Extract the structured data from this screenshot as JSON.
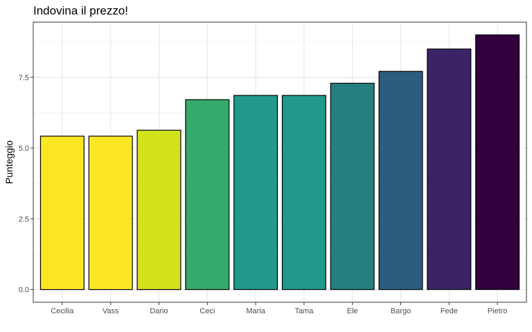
{
  "chart_data": {
    "type": "bar",
    "title": "Indovina il prezzo!",
    "xlabel": "",
    "ylabel": "Punteggio",
    "categories": [
      "Cecilia",
      "Vass",
      "Dario",
      "Ceci",
      "Maria",
      "Tama",
      "Ele",
      "Bargo",
      "Fede",
      "Pietro"
    ],
    "values": [
      5.42,
      5.42,
      5.63,
      6.71,
      6.86,
      6.86,
      7.29,
      7.71,
      8.5,
      9.0
    ],
    "colors": [
      "#fde725",
      "#fde725",
      "#d2e21b",
      "#35a96a",
      "#21998b",
      "#21998b",
      "#24807e",
      "#2a5d7e",
      "#3b2466",
      "#33003e"
    ],
    "ylim": [
      -0.45,
      9.45
    ],
    "yticks": [
      0,
      2.5,
      5,
      7.5
    ],
    "ytick_labels": [
      "0.0",
      "2.5",
      "5.0",
      "7.5"
    ],
    "grid": true,
    "legend": "none"
  }
}
